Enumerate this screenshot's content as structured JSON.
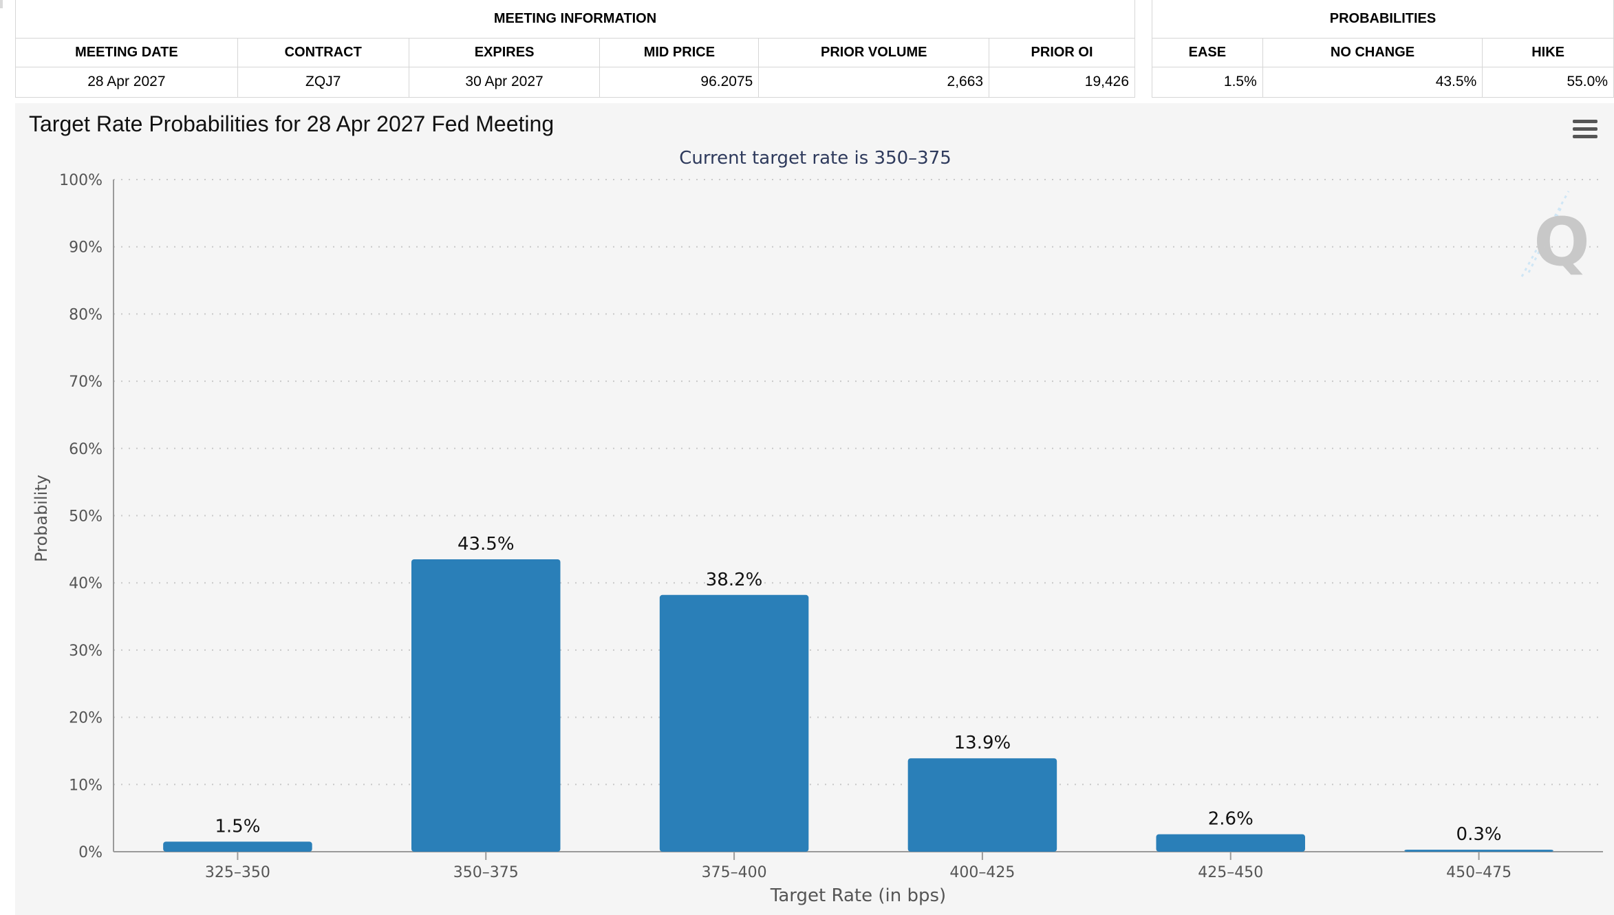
{
  "meeting_info": {
    "group_title": "MEETING INFORMATION",
    "headers": [
      "MEETING DATE",
      "CONTRACT",
      "EXPIRES",
      "MID PRICE",
      "PRIOR VOLUME",
      "PRIOR OI"
    ],
    "row": {
      "meeting_date": "28 Apr 2027",
      "contract": "ZQJ7",
      "expires": "30 Apr 2027",
      "mid_price": "96.2075",
      "prior_volume": "2,663",
      "prior_oi": "19,426"
    }
  },
  "probabilities": {
    "group_title": "PROBABILITIES",
    "headers": [
      "EASE",
      "NO CHANGE",
      "HIKE"
    ],
    "row": {
      "ease": "1.5%",
      "no_change": "43.5%",
      "hike": "55.0%"
    }
  },
  "chart_data": {
    "type": "bar",
    "title": "Target Rate Probabilities for 28 Apr 2027 Fed Meeting",
    "subtitle": "Current target rate is 350–375",
    "xlabel": "Target Rate (in bps)",
    "ylabel": "Probability",
    "categories": [
      "325–350",
      "350–375",
      "375–400",
      "400–425",
      "425–450",
      "450–475"
    ],
    "values": [
      1.5,
      43.5,
      38.2,
      13.9,
      2.6,
      0.3
    ],
    "data_labels": [
      "1.5%",
      "43.5%",
      "38.2%",
      "13.9%",
      "2.6%",
      "0.3%"
    ],
    "ylim": [
      0,
      100
    ],
    "yticks": [
      0,
      10,
      20,
      30,
      40,
      50,
      60,
      70,
      80,
      90,
      100
    ],
    "ytick_labels": [
      "0%",
      "10%",
      "20%",
      "30%",
      "40%",
      "50%",
      "60%",
      "70%",
      "80%",
      "90%",
      "100%"
    ],
    "grid": true,
    "legend": "none",
    "bar_color": "#2a7fb8",
    "watermark_letter": "Q"
  }
}
